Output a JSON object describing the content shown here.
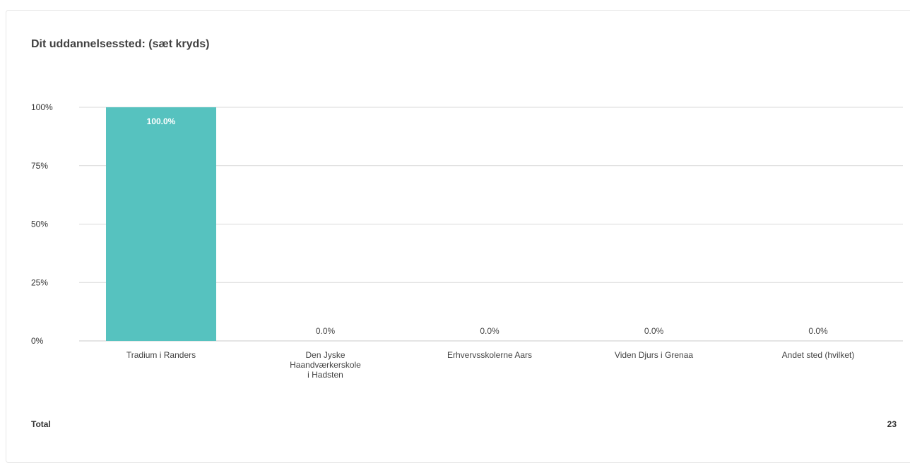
{
  "chart_data": {
    "type": "bar",
    "title": "Dit uddannelsessted: (sæt kryds)",
    "categories": [
      "Tradium i Randers",
      "Den Jyske Haandværkerskole i Hadsten",
      "Erhvervsskolerne Aars",
      "Viden Djurs i Grenaa",
      "Andet sted (hvilket)"
    ],
    "values": [
      100.0,
      0.0,
      0.0,
      0.0,
      0.0
    ],
    "value_labels": [
      "100.0%",
      "0.0%",
      "0.0%",
      "0.0%",
      "0.0%"
    ],
    "y_ticks": [
      "0%",
      "25%",
      "50%",
      "75%",
      "100%"
    ],
    "ylim": [
      0,
      100
    ],
    "grid": true,
    "bar_color": "#56c2bf",
    "xlabel": "",
    "ylabel": ""
  },
  "footer": {
    "label": "Total",
    "value": "23"
  }
}
